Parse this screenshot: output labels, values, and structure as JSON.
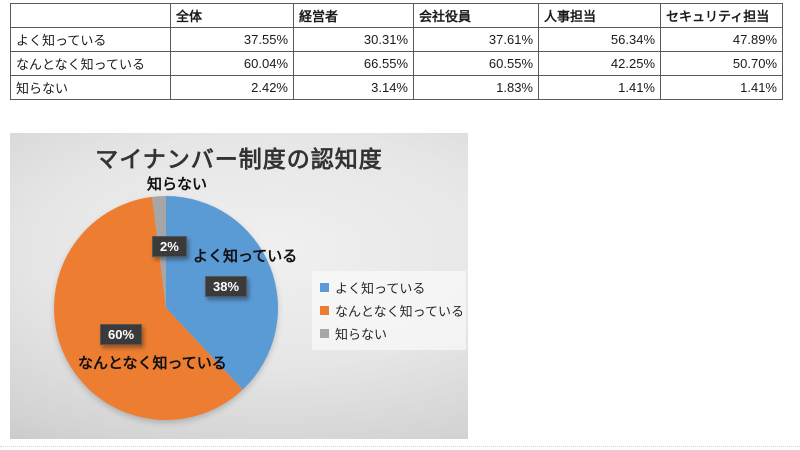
{
  "chart_data": [
    {
      "type": "table",
      "columns": [
        "",
        "全体",
        "経営者",
        "会社役員",
        "人事担当",
        "セキュリティ担当"
      ],
      "rows": [
        {
          "label": "よく知っている",
          "values": [
            "37.55%",
            "30.31%",
            "37.61%",
            "56.34%",
            "47.89%"
          ]
        },
        {
          "label": "なんとなく知っている",
          "values": [
            "60.04%",
            "66.55%",
            "60.55%",
            "42.25%",
            "50.70%"
          ]
        },
        {
          "label": "知らない",
          "values": [
            "2.42%",
            "3.14%",
            "1.83%",
            "1.41%",
            "1.41%"
          ]
        }
      ]
    },
    {
      "type": "pie",
      "title": "マイナンバー制度の認知度",
      "categories": [
        "よく知っている",
        "なんとなく知っている",
        "知らない"
      ],
      "values": [
        38,
        60,
        2
      ],
      "data_labels": [
        "38%",
        "60%",
        "2%"
      ],
      "colors": [
        "#5B9BD5",
        "#ED7D31",
        "#A6A6A6"
      ],
      "start_angle_deg": 0,
      "direction": "clockwise",
      "legend": {
        "position": "right",
        "entries": [
          "よく知っている",
          "なんとなく知っている",
          "知らない"
        ]
      },
      "callout_text_color": "#ffffff",
      "callout_background": "#3a3a3a",
      "panel_background": "#d9d9d9"
    }
  ]
}
